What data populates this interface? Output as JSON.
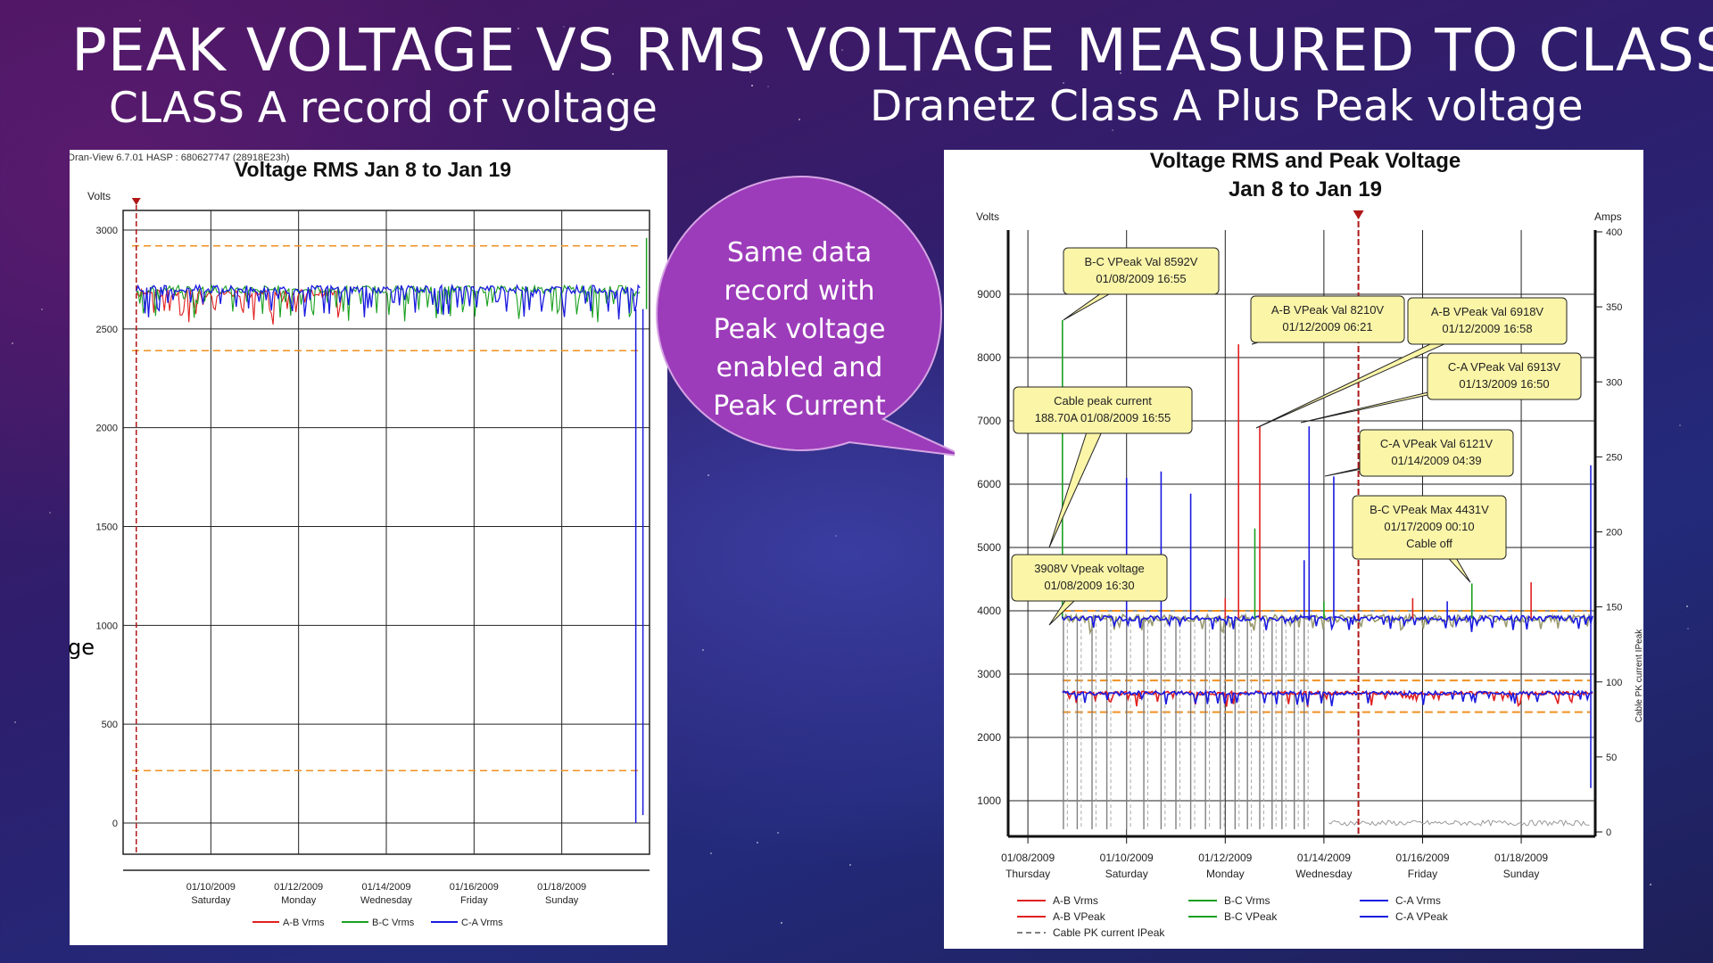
{
  "slide": {
    "title": "PEAK VOLTAGE VS RMS VOLTAGE MEASURED TO CLASS A",
    "subtitle_left": "CLASS A  record of voltage",
    "subtitle_right": "Dranetz Class A Plus Peak voltage",
    "callout": [
      "Same data",
      "record with",
      "Peak voltage",
      "enabled and",
      "Peak Current"
    ],
    "fragment": "ge"
  },
  "colors": {
    "ab": "#e02020",
    "bc": "#1aa020",
    "ca": "#1a1ae0",
    "threshold": "#f09020",
    "cursor": "#b01818",
    "cable": "#808080",
    "bubble": "#9c3cba"
  },
  "chart_data": [
    {
      "type": "line",
      "header": "Dran-View 6.7.01 HASP : 680627747 (28918E23h)",
      "title": "Voltage RMS Jan 8 to Jan 19",
      "ylabel": "Volts",
      "ylim": [
        0,
        3000
      ],
      "yticks": [
        3000,
        2500,
        2000,
        1500,
        1000,
        500,
        0
      ],
      "xrange_days": [
        8,
        20
      ],
      "xticks": [
        {
          "day": 10,
          "date": "01/10/2009",
          "weekday": "Saturday"
        },
        {
          "day": 12,
          "date": "01/12/2009",
          "weekday": "Monday"
        },
        {
          "day": 14,
          "date": "01/14/2009",
          "weekday": "Wednesday"
        },
        {
          "day": 16,
          "date": "01/16/2009",
          "weekday": "Friday"
        },
        {
          "day": 18,
          "date": "01/18/2009",
          "weekday": "Sunday"
        }
      ],
      "thresholds": [
        2920,
        2390,
        265
      ],
      "cursor_day": 8.3,
      "series": [
        {
          "name": "A-B Vrms",
          "color_key": "ab",
          "level": 2680,
          "until_day": 13
        },
        {
          "name": "B-C Vrms",
          "color_key": "bc",
          "level": 2700,
          "until_day": 19.8
        },
        {
          "name": "C-A Vrms",
          "color_key": "ca",
          "level": 2700,
          "until_day": 19.8
        }
      ],
      "legend": [
        "A-B Vrms",
        "B-C Vrms",
        "C-A Vrms"
      ]
    },
    {
      "type": "line",
      "title_line1": "Voltage RMS and Peak Voltage",
      "title_line2": "Jan 8 to Jan 19",
      "ylabel": "Volts",
      "y2label": "Amps",
      "y2title": "Cable PK current IPeak",
      "ylim": [
        0,
        10000
      ],
      "yticks": [
        9000,
        8000,
        7000,
        6000,
        5000,
        4000,
        3000,
        2000,
        1000
      ],
      "y2lim": [
        0,
        400
      ],
      "y2ticks": [
        400,
        350,
        300,
        250,
        200,
        150,
        100,
        50,
        0
      ],
      "xrange_days": [
        7.6,
        19.5
      ],
      "xticks": [
        {
          "day": 8,
          "date": "01/08/2009",
          "weekday": "Thursday"
        },
        {
          "day": 10,
          "date": "01/10/2009",
          "weekday": "Saturday"
        },
        {
          "day": 12,
          "date": "01/12/2009",
          "weekday": "Monday"
        },
        {
          "day": 14,
          "date": "01/14/2009",
          "weekday": "Wednesday"
        },
        {
          "day": 16,
          "date": "01/16/2009",
          "weekday": "Friday"
        },
        {
          "day": 18,
          "date": "01/18/2009",
          "weekday": "Sunday"
        }
      ],
      "thresholds": [
        4000,
        2900,
        2400
      ],
      "cursor_day": 14.7,
      "rms_level": 2700,
      "peak_level": 3880,
      "spikes": [
        {
          "day": 8.7,
          "value": 8592,
          "color_key": "bc"
        },
        {
          "day": 12.27,
          "value": 8210,
          "color_key": "ab"
        },
        {
          "day": 12.7,
          "value": 6918,
          "color_key": "ab"
        },
        {
          "day": 13.7,
          "value": 6913,
          "color_key": "ca"
        },
        {
          "day": 14.2,
          "value": 6121,
          "color_key": "ca"
        },
        {
          "day": 17.0,
          "value": 4431,
          "color_key": "bc"
        },
        {
          "day": 8.7,
          "value": 3908,
          "color_key": "ca"
        },
        {
          "day": 10.0,
          "value": 6100,
          "color_key": "ca"
        },
        {
          "day": 10.7,
          "value": 6200,
          "color_key": "ca"
        },
        {
          "day": 11.3,
          "value": 5850,
          "color_key": "ca"
        },
        {
          "day": 12.6,
          "value": 5300,
          "color_key": "bc"
        },
        {
          "day": 13.6,
          "value": 4800,
          "color_key": "ca"
        }
      ],
      "annotations": [
        {
          "lines": [
            "B-C VPeak Val 8592V",
            "01/08/2009 16:55"
          ],
          "day": 8.7,
          "value": 8592
        },
        {
          "lines": [
            "A-B VPeak Val 8210V",
            "01/12/2009 06:21"
          ],
          "day": 12.27,
          "value": 8210
        },
        {
          "lines": [
            "A-B VPeak Val 6918V",
            "01/12/2009 16:58"
          ],
          "day": 12.7,
          "value": 6918
        },
        {
          "lines": [
            "C-A VPeak Val 6913V",
            "01/13/2009 16:50"
          ],
          "day": 13.7,
          "value": 6913
        },
        {
          "lines": [
            "Cable peak current",
            "188.70A 01/08/2009 16:55"
          ],
          "day": 8.7,
          "value": 5000
        },
        {
          "lines": [
            "C-A VPeak Val 6121V",
            "01/14/2009 04:39"
          ],
          "day": 14.2,
          "value": 6121
        },
        {
          "lines": [
            "B-C VPeak Max 4431V",
            "01/17/2009 00:10",
            "Cable off"
          ],
          "day": 17.0,
          "value": 4431
        },
        {
          "lines": [
            "3908V Vpeak voltage",
            "01/08/2009 16:30"
          ],
          "day": 8.7,
          "value": 3908
        }
      ],
      "legend": [
        "A-B Vrms",
        "A-B VPeak",
        "B-C Vrms",
        "B-C VPeak",
        "C-A Vrms",
        "C-A VPeak",
        "Cable PK current IPeak"
      ]
    }
  ]
}
